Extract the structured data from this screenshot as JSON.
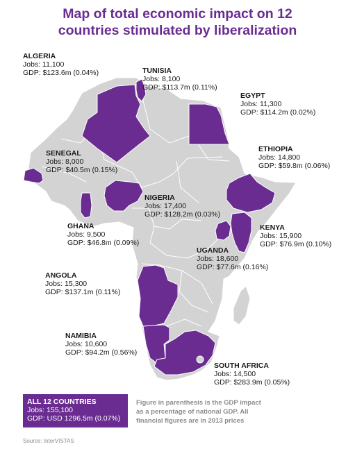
{
  "title": {
    "line1": "Map of total economic impact on 12",
    "line2": "countries stimulated by liberalization"
  },
  "colors": {
    "highlight": "#6a2c91",
    "base_land": "#d3d3d3",
    "border": "#ffffff",
    "title": "#6a2c91",
    "footnote": "#8c8c8c"
  },
  "countries": [
    {
      "key": "algeria",
      "name": "ALGERIA",
      "jobs": "Jobs: 11,100",
      "gdp": "GDP: $123.6m (0.04%)"
    },
    {
      "key": "tunisia",
      "name": "TUNISIA",
      "jobs": "Jobs: 8,100",
      "gdp": "GDP: $113.7m (0.11%)"
    },
    {
      "key": "egypt",
      "name": "EGYPT",
      "jobs": "Jobs: 11,300",
      "gdp": "GDP: $114.2m (0.02%)"
    },
    {
      "key": "ethiopia",
      "name": "ETHIOPIA",
      "jobs": "Jobs: 14,800",
      "gdp": "GDP: $59.8m (0.06%)"
    },
    {
      "key": "senegal",
      "name": "SENEGAL",
      "jobs": "Jobs: 8,000",
      "gdp": "GDP: $40.5m (0.15%)"
    },
    {
      "key": "nigeria",
      "name": "NIGERIA",
      "jobs": "Jobs: 17,400",
      "gdp": "GDP: $128.2m (0.03%)"
    },
    {
      "key": "ghana",
      "name": "GHANA",
      "jobs": "Jobs: 9,500",
      "gdp": "GDP: $46.8m (0.09%)"
    },
    {
      "key": "kenya",
      "name": "KENYA",
      "jobs": "Jobs: 15,900",
      "gdp": "GDP: $76.9m (0.10%)"
    },
    {
      "key": "uganda",
      "name": "UGANDA",
      "jobs": "Jobs: 18,600",
      "gdp": "GDP: $77.6m (0.16%)"
    },
    {
      "key": "angola",
      "name": "ANGOLA",
      "jobs": "Jobs: 15,300",
      "gdp": "GDP: $137.1m (0.11%)"
    },
    {
      "key": "namibia",
      "name": "NAMIBIA",
      "jobs": "Jobs: 10,600",
      "gdp": "GDP: $94.2m (0.56%)"
    },
    {
      "key": "south_africa",
      "name": "SOUTH AFRICA",
      "jobs": "Jobs: 14,500",
      "gdp": "GDP: $283.9m (0.05%)"
    }
  ],
  "total": {
    "name": "ALL 12 COUNTRIES",
    "jobs": "Jobs: 155,100",
    "gdp": "GDP: USD 1296.5m (0.07%)"
  },
  "footnote": {
    "line1": "Figure in parenthesis is the GDP impact",
    "line2": "as a percentage of national GDP. All",
    "line3": "financial figures are in 2013 prices"
  },
  "source": "Source: InterVISTAS"
}
